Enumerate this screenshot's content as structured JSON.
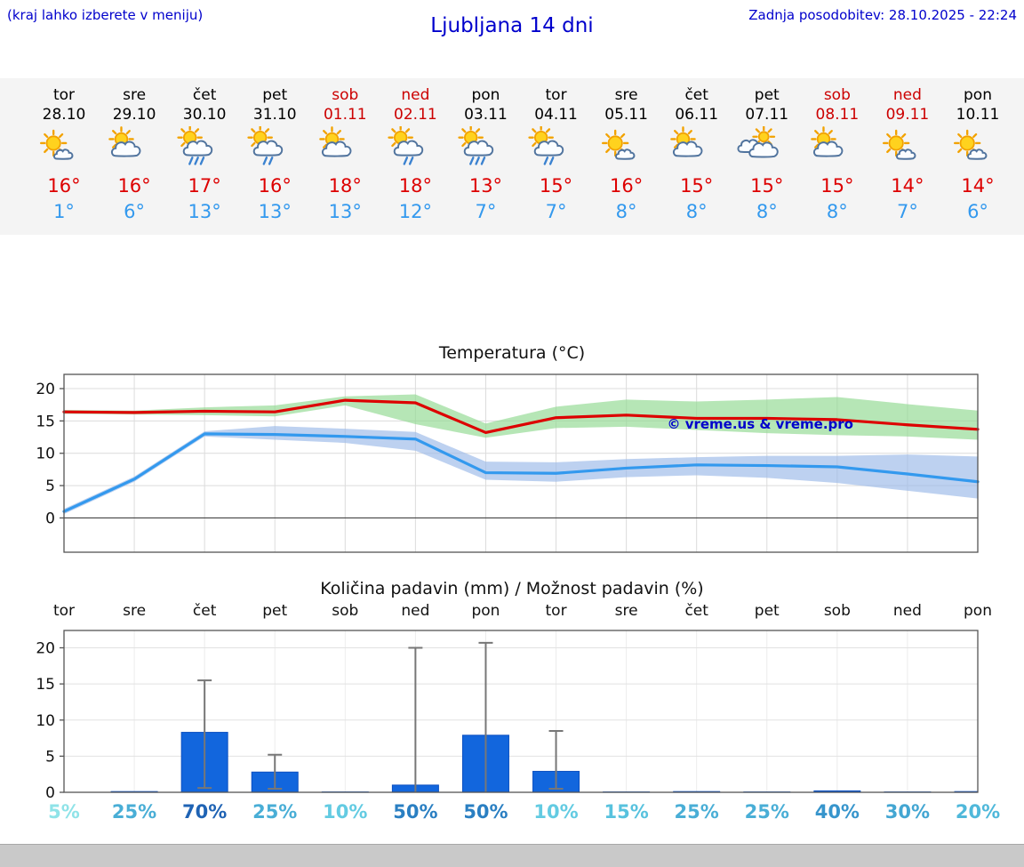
{
  "header": {
    "note": "(kraj lahko izberete v meniju)",
    "title": "Ljubljana 14 dni",
    "updated": "Zadnja posodobitev: 28.10.2025 - 22:24"
  },
  "forecast": {
    "days": [
      {
        "name": "tor",
        "date": "28.10",
        "weekend": false,
        "icon": "mostly-sunny",
        "tmax": "16°",
        "tmin": "1°"
      },
      {
        "name": "sre",
        "date": "29.10",
        "weekend": false,
        "icon": "partly-cloudy",
        "tmax": "16°",
        "tmin": "6°"
      },
      {
        "name": "čet",
        "date": "30.10",
        "weekend": false,
        "icon": "showers-heavy",
        "tmax": "17°",
        "tmin": "13°"
      },
      {
        "name": "pet",
        "date": "31.10",
        "weekend": false,
        "icon": "showers",
        "tmax": "16°",
        "tmin": "13°"
      },
      {
        "name": "sob",
        "date": "01.11",
        "weekend": true,
        "icon": "partly-cloudy",
        "tmax": "18°",
        "tmin": "13°"
      },
      {
        "name": "ned",
        "date": "02.11",
        "weekend": true,
        "icon": "showers",
        "tmax": "18°",
        "tmin": "12°"
      },
      {
        "name": "pon",
        "date": "03.11",
        "weekend": false,
        "icon": "showers-heavy",
        "tmax": "13°",
        "tmin": "7°"
      },
      {
        "name": "tor",
        "date": "04.11",
        "weekend": false,
        "icon": "showers",
        "tmax": "15°",
        "tmin": "7°"
      },
      {
        "name": "sre",
        "date": "05.11",
        "weekend": false,
        "icon": "mostly-sunny",
        "tmax": "16°",
        "tmin": "8°"
      },
      {
        "name": "čet",
        "date": "06.11",
        "weekend": false,
        "icon": "partly-cloudy",
        "tmax": "15°",
        "tmin": "8°"
      },
      {
        "name": "pet",
        "date": "07.11",
        "weekend": false,
        "icon": "cloudy",
        "tmax": "15°",
        "tmin": "8°"
      },
      {
        "name": "sob",
        "date": "08.11",
        "weekend": true,
        "icon": "partly-cloudy",
        "tmax": "15°",
        "tmin": "8°"
      },
      {
        "name": "ned",
        "date": "09.11",
        "weekend": true,
        "icon": "mostly-sunny",
        "tmax": "14°",
        "tmin": "7°"
      },
      {
        "name": "pon",
        "date": "10.11",
        "weekend": false,
        "icon": "mostly-sunny",
        "tmax": "14°",
        "tmin": "6°"
      }
    ]
  },
  "chart_data": [
    {
      "type": "line",
      "title": "Temperatura (°C)",
      "categories": [
        "tor",
        "sre",
        "čet",
        "pet",
        "sob",
        "ned",
        "pon",
        "tor",
        "sre",
        "čet",
        "pet",
        "sob",
        "ned",
        "pon"
      ],
      "series": [
        {
          "name": "max-temperature",
          "color": "#dd0000",
          "values": [
            16.4,
            16.3,
            16.5,
            16.4,
            18.2,
            17.8,
            13.2,
            15.5,
            15.9,
            15.4,
            15.4,
            15.2,
            14.4,
            13.7
          ]
        },
        {
          "name": "min-temperature",
          "color": "#3399ee",
          "values": [
            1,
            6,
            13,
            12.9,
            12.6,
            12.2,
            7,
            6.9,
            7.7,
            8.2,
            8.1,
            7.9,
            6.8,
            5.6
          ]
        }
      ],
      "bands": [
        {
          "name": "max-range",
          "color": "#8fd98f",
          "upper": [
            16.7,
            16.6,
            17.1,
            17.4,
            18.8,
            19.1,
            14.6,
            17.2,
            18.3,
            18.0,
            18.3,
            18.7,
            17.6,
            16.6
          ],
          "lower": [
            16.1,
            16.0,
            15.9,
            15.7,
            17.4,
            14.5,
            12.4,
            13.9,
            14.1,
            13.6,
            13.1,
            12.8,
            12.6,
            12.1
          ]
        },
        {
          "name": "min-range",
          "color": "#9ab8e8",
          "upper": [
            1.4,
            6.4,
            13.4,
            14.2,
            13.8,
            13.3,
            8.7,
            8.6,
            9.1,
            9.4,
            9.6,
            9.6,
            9.8,
            9.5
          ],
          "lower": [
            0.6,
            5.6,
            12.6,
            12.1,
            11.6,
            10.4,
            5.9,
            5.6,
            6.3,
            6.6,
            6.2,
            5.4,
            4.2,
            3.0
          ]
        }
      ],
      "ylim": [
        -5.3,
        22.2
      ],
      "yticks": [
        0,
        5,
        10,
        15,
        20
      ],
      "grid": true,
      "watermark": "© vreme.us & vreme.pro"
    },
    {
      "type": "bar",
      "title": "Količina padavin (mm) / Možnost padavin (%)",
      "categories": [
        "tor",
        "sre",
        "čet",
        "pet",
        "sob",
        "ned",
        "pon",
        "tor",
        "sre",
        "čet",
        "pet",
        "sob",
        "ned",
        "pon"
      ],
      "values": [
        0,
        0.1,
        8.3,
        2.8,
        0.05,
        1.0,
        7.9,
        2.9,
        0.05,
        0.1,
        0.05,
        0.2,
        0.05,
        0.1
      ],
      "whisker_high": [
        0,
        0,
        15.5,
        5.2,
        0,
        20.0,
        20.7,
        8.5,
        0,
        0,
        0,
        0,
        0,
        0
      ],
      "whisker_low": [
        0,
        0,
        0.6,
        0.5,
        0,
        0.05,
        0.05,
        0.5,
        0,
        0,
        0,
        0,
        0,
        0
      ],
      "bar_color": "#1266dd",
      "ylim": [
        0,
        22.4
      ],
      "yticks": [
        0,
        5,
        10,
        15,
        20
      ],
      "probabilities": [
        {
          "label": "5%",
          "color": "#8fe3e8"
        },
        {
          "label": "25%",
          "color": "#49aed6"
        },
        {
          "label": "70%",
          "color": "#1f63b4"
        },
        {
          "label": "25%",
          "color": "#49aed6"
        },
        {
          "label": "10%",
          "color": "#63cbe2"
        },
        {
          "label": "50%",
          "color": "#2a7fc2"
        },
        {
          "label": "50%",
          "color": "#2a7fc2"
        },
        {
          "label": "10%",
          "color": "#63cbe2"
        },
        {
          "label": "15%",
          "color": "#58c2de"
        },
        {
          "label": "25%",
          "color": "#49aed6"
        },
        {
          "label": "25%",
          "color": "#49aed6"
        },
        {
          "label": "40%",
          "color": "#3795cc"
        },
        {
          "label": "30%",
          "color": "#43a6d2"
        },
        {
          "label": "20%",
          "color": "#4fb8da"
        }
      ]
    }
  ]
}
